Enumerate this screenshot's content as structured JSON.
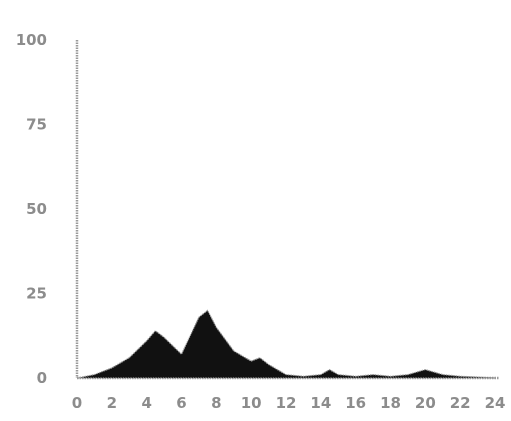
{
  "chart_data": {
    "type": "area",
    "title": "",
    "xlabel": "",
    "ylabel": "",
    "xlim": [
      0,
      24
    ],
    "ylim": [
      0,
      100
    ],
    "x_ticks": [
      "0",
      "2",
      "4",
      "6",
      "8",
      "10",
      "12",
      "14",
      "16",
      "18",
      "20",
      "22",
      "24"
    ],
    "y_ticks": [
      "0",
      "25",
      "50",
      "75",
      "100"
    ],
    "grid": false,
    "legend": "none",
    "series": [
      {
        "x": [
          0,
          1,
          2,
          3,
          4,
          4.5,
          5,
          6,
          7,
          7.5,
          8,
          9,
          10,
          10.5,
          11,
          12,
          13,
          14,
          14.5,
          15,
          16,
          17,
          18,
          19,
          20,
          21,
          22,
          23,
          24
        ],
        "y": [
          0,
          1,
          3,
          6,
          11,
          14,
          12,
          7,
          18,
          20,
          15,
          8,
          5,
          6,
          4,
          1,
          0.5,
          1,
          2.5,
          1,
          0.5,
          1,
          0.5,
          1,
          2.5,
          1,
          0.5,
          0.3,
          0
        ],
        "color": "#111111"
      }
    ],
    "axis_color": "#9a9a9a",
    "label_color": "#8c8c8c"
  }
}
